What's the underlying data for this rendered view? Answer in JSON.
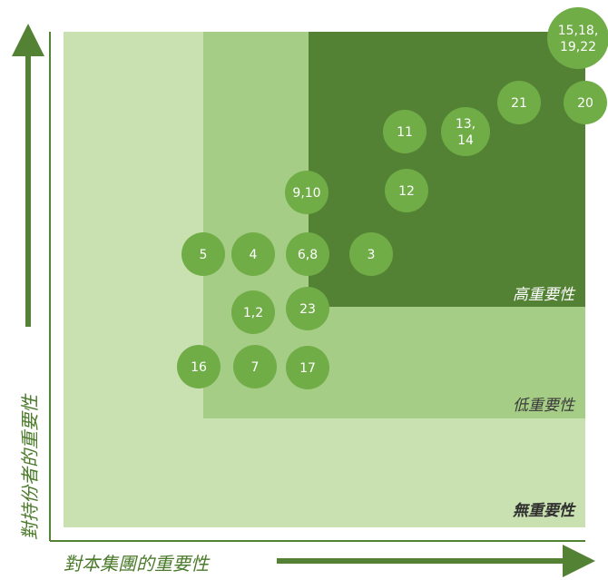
{
  "colors": {
    "zone_none": "#c9e1b0",
    "zone_low": "#a6cd86",
    "zone_high": "#548235",
    "circle": "#70ad47",
    "axis": "#548235",
    "axis_text": "#4a7a2a",
    "zone_text_light": "#ffffff",
    "zone_text_dark": "#2f2f2f"
  },
  "zones": {
    "none_label": "無重要性",
    "low_label": "低重要性",
    "high_label": "高重要性"
  },
  "axes": {
    "x_title": "對本集團的重要性",
    "y_title": "對持份者的重要性"
  },
  "points": [
    {
      "label_lines": [
        "15,18,",
        "19,22"
      ]
    },
    {
      "label_lines": [
        "21"
      ]
    },
    {
      "label_lines": [
        "20"
      ]
    },
    {
      "label_lines": [
        "11"
      ]
    },
    {
      "label_lines": [
        "13,",
        "14"
      ]
    },
    {
      "label_lines": [
        "9,10"
      ]
    },
    {
      "label_lines": [
        "12"
      ]
    },
    {
      "label_lines": [
        "5"
      ]
    },
    {
      "label_lines": [
        "4"
      ]
    },
    {
      "label_lines": [
        "6,8"
      ]
    },
    {
      "label_lines": [
        "3"
      ]
    },
    {
      "label_lines": [
        "1,2"
      ]
    },
    {
      "label_lines": [
        "23"
      ]
    },
    {
      "label_lines": [
        "16"
      ]
    },
    {
      "label_lines": [
        "7"
      ]
    },
    {
      "label_lines": [
        "17"
      ]
    }
  ]
}
